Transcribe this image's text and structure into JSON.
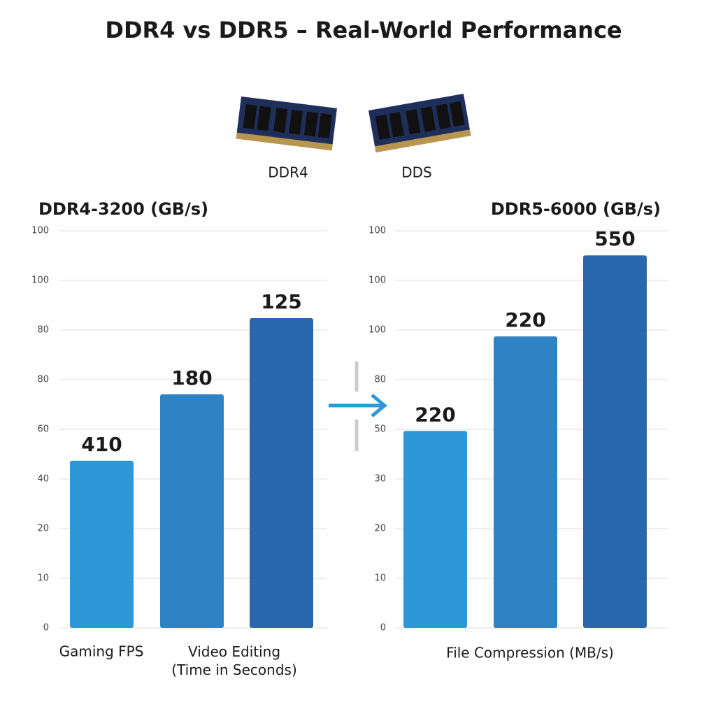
{
  "title": "DDR4 vs DDR5 – Real-World Performance",
  "modules": [
    "DDR4",
    "DDS"
  ],
  "chart_data": [
    {
      "type": "bar",
      "title": "DDR4-3200 (GB/s)",
      "categories": [
        "Gaming FPS",
        "Video Editing\n(Time in Seconds)",
        null
      ],
      "values": [
        42.1,
        58.8,
        78.0
      ],
      "value_labels": [
        "410",
        "180",
        "125"
      ],
      "colors": [
        "#2e97d8",
        "#2f82c4",
        "#2b67ad"
      ],
      "ylim": [
        0,
        100
      ],
      "yticks": [
        0,
        {
          "value": 12.5,
          "label": "10"
        },
        {
          "value": 25,
          "label": "20"
        },
        {
          "value": 37.5,
          "label": "40"
        },
        {
          "value": 50,
          "label": "60"
        },
        {
          "value": 62.5,
          "label": "80"
        },
        {
          "value": 75,
          "label": "80"
        },
        {
          "value": 87.5,
          "label": "100"
        },
        100
      ],
      "grid": true
    },
    {
      "type": "bar",
      "title": "DDR5-6000 (GB/s)",
      "categories": [
        null,
        "File Compression (MB/s)",
        null
      ],
      "values": [
        49.6,
        73.4,
        93.8
      ],
      "value_labels": [
        "220",
        "220",
        "550"
      ],
      "colors": [
        "#2e97d8",
        "#2f82c4",
        "#2b67ad"
      ],
      "ylim": [
        0,
        100
      ],
      "yticks": [
        0,
        {
          "value": 12.5,
          "label": "10"
        },
        {
          "value": 25,
          "label": "20"
        },
        {
          "value": 37.5,
          "label": "30"
        },
        {
          "value": 50,
          "label": "50"
        },
        {
          "value": 62.5,
          "label": "80"
        },
        {
          "value": 75,
          "label": "100"
        },
        {
          "value": 87.5,
          "label": "100"
        },
        100
      ],
      "grid": true
    }
  ]
}
